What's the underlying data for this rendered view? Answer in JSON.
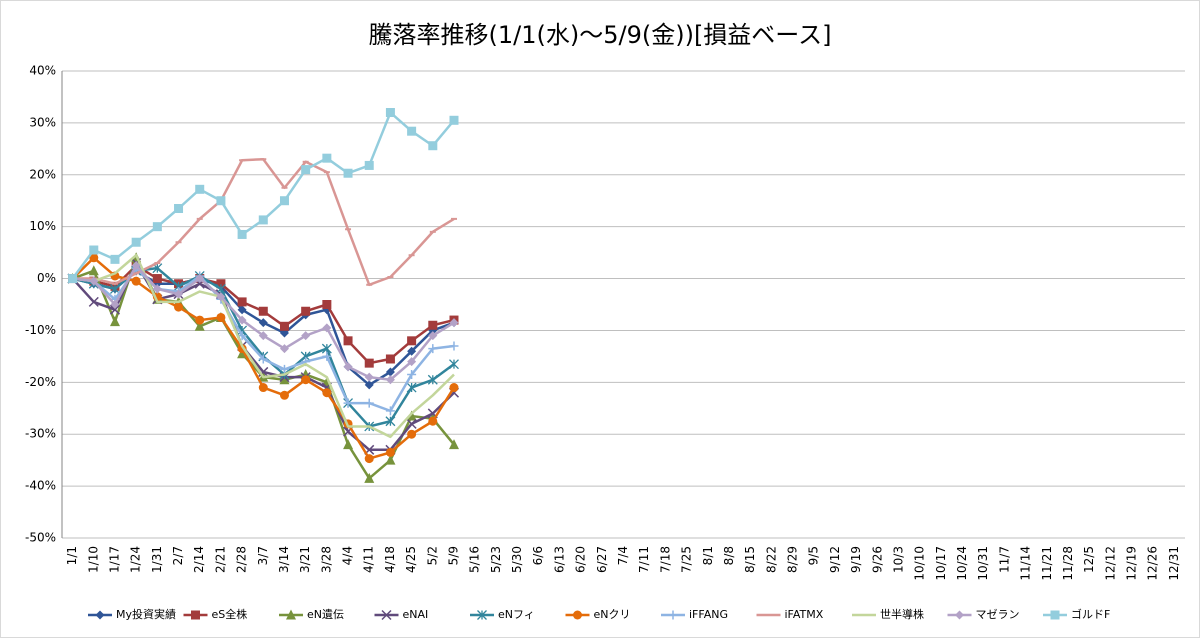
{
  "chart_data": {
    "type": "line",
    "title": "騰落率推移(1/1(水)～5/9(金))[損益ベース]",
    "categories": [
      "1/1",
      "1/10",
      "1/17",
      "1/24",
      "1/31",
      "2/7",
      "2/14",
      "2/21",
      "2/28",
      "3/7",
      "3/14",
      "3/21",
      "3/28",
      "4/4",
      "4/11",
      "4/18",
      "4/25",
      "5/2",
      "5/9",
      "5/16",
      "5/23",
      "5/30",
      "6/6",
      "6/13",
      "6/20",
      "6/27",
      "7/4",
      "7/11",
      "7/18",
      "7/25",
      "8/1",
      "8/8",
      "8/15",
      "8/22",
      "8/29",
      "9/5",
      "9/12",
      "9/19",
      "9/26",
      "10/3",
      "10/10",
      "10/17",
      "10/24",
      "10/31",
      "11/7",
      "11/14",
      "11/21",
      "11/28",
      "12/5",
      "12/12",
      "12/19",
      "12/26",
      "12/31"
    ],
    "ylim": [
      -50,
      40
    ],
    "yticks": [
      {
        "value": -50,
        "label": "-50%"
      },
      {
        "value": -40,
        "label": "-40%"
      },
      {
        "value": -30,
        "label": "-30%"
      },
      {
        "value": -20,
        "label": "-20%"
      },
      {
        "value": -10,
        "label": "-10%"
      },
      {
        "value": 0,
        "label": "0%"
      },
      {
        "value": 10,
        "label": "10%"
      },
      {
        "value": 20,
        "label": "20%"
      },
      {
        "value": 30,
        "label": "30%"
      },
      {
        "value": 40,
        "label": "40%"
      }
    ],
    "grid": true,
    "legend": "bottom",
    "series": [
      {
        "name": "My投資実績",
        "color": "#2f5597",
        "marker": "diamond",
        "values": [
          0,
          -1,
          -2,
          1.5,
          -1,
          -1,
          0,
          -1.5,
          -6,
          -8.5,
          -10.5,
          -7,
          -6,
          -17,
          -20.5,
          -18,
          -14,
          -10,
          -8.5,
          null,
          null,
          null,
          null,
          null,
          null,
          null,
          null,
          null,
          null,
          null,
          null,
          null,
          null,
          null,
          null,
          null,
          null,
          null,
          null,
          null,
          null,
          null,
          null,
          null,
          null,
          null,
          null,
          null,
          null,
          null,
          null,
          null,
          null
        ]
      },
      {
        "name": "eS全株",
        "color": "#a33b3b",
        "marker": "square",
        "values": [
          0,
          -0.5,
          -1.5,
          2.5,
          0,
          -1,
          0,
          -1,
          -4.5,
          -6.3,
          -9.2,
          -6.3,
          -5,
          -12,
          -16.3,
          -15.5,
          -12,
          -9,
          -8,
          null,
          null,
          null,
          null,
          null,
          null,
          null,
          null,
          null,
          null,
          null,
          null,
          null,
          null,
          null,
          null,
          null,
          null,
          null,
          null,
          null,
          null,
          null,
          null,
          null,
          null,
          null,
          null,
          null,
          null,
          null,
          null,
          null,
          null
        ]
      },
      {
        "name": "eN遺伝",
        "color": "#77933c",
        "marker": "triangle",
        "values": [
          0,
          1.5,
          -8.3,
          4,
          -4,
          -4.5,
          -9.2,
          -7.5,
          -14.5,
          -19,
          -19.5,
          -18.5,
          -20,
          -32,
          -38.5,
          -35,
          -26.5,
          -27,
          -32,
          null,
          null,
          null,
          null,
          null,
          null,
          null,
          null,
          null,
          null,
          null,
          null,
          null,
          null,
          null,
          null,
          null,
          null,
          null,
          null,
          null,
          null,
          null,
          null,
          null,
          null,
          null,
          null,
          null,
          null,
          null,
          null,
          null,
          null
        ]
      },
      {
        "name": "eNAI",
        "color": "#604a7b",
        "marker": "x",
        "values": [
          0,
          -4.5,
          -6,
          3,
          -4,
          -3,
          -1,
          -3,
          -13,
          -18,
          -19,
          -19,
          -21,
          -29.5,
          -33,
          -33,
          -28,
          -26,
          -22,
          null,
          null,
          null,
          null,
          null,
          null,
          null,
          null,
          null,
          null,
          null,
          null,
          null,
          null,
          null,
          null,
          null,
          null,
          null,
          null,
          null,
          null,
          null,
          null,
          null,
          null,
          null,
          null,
          null,
          null,
          null,
          null,
          null,
          null
        ]
      },
      {
        "name": "eNフィ",
        "color": "#31859c",
        "marker": "star",
        "values": [
          0,
          -1,
          -2,
          1.5,
          2,
          -1.5,
          0.5,
          -2,
          -10,
          -15,
          -18.5,
          -15,
          -13.5,
          -24,
          -28.5,
          -27.5,
          -21,
          -19.5,
          -16.5,
          null,
          null,
          null,
          null,
          null,
          null,
          null,
          null,
          null,
          null,
          null,
          null,
          null,
          null,
          null,
          null,
          null,
          null,
          null,
          null,
          null,
          null,
          null,
          null,
          null,
          null,
          null,
          null,
          null,
          null,
          null,
          null,
          null,
          null
        ]
      },
      {
        "name": "eNクリ",
        "color": "#e46c0a",
        "marker": "circle",
        "values": [
          0,
          4,
          0.5,
          -0.5,
          -3.5,
          -5.5,
          -8,
          -7.5,
          -13.5,
          -21,
          -22.5,
          -19.5,
          -22,
          -28,
          -34.7,
          -33.5,
          -30,
          -27.5,
          -21,
          null,
          null,
          null,
          null,
          null,
          null,
          null,
          null,
          null,
          null,
          null,
          null,
          null,
          null,
          null,
          null,
          null,
          null,
          null,
          null,
          null,
          null,
          null,
          null,
          null,
          null,
          null,
          null,
          null,
          null,
          null,
          null,
          null,
          null
        ]
      },
      {
        "name": "iFFANG",
        "color": "#8eb4e3",
        "marker": "plus",
        "values": [
          0,
          -0.5,
          -4,
          2,
          -2,
          -2.5,
          0.5,
          -4,
          -11,
          -15.5,
          -17.5,
          -16,
          -15,
          -24,
          -24,
          -25.5,
          -18.5,
          -13.5,
          -13,
          null,
          null,
          null,
          null,
          null,
          null,
          null,
          null,
          null,
          null,
          null,
          null,
          null,
          null,
          null,
          null,
          null,
          null,
          null,
          null,
          null,
          null,
          null,
          null,
          null,
          null,
          null,
          null,
          null,
          null,
          null,
          null,
          null,
          null
        ]
      },
      {
        "name": "iFATMX",
        "color": "#d99694",
        "marker": "dash",
        "values": [
          0,
          0,
          -1,
          1,
          3,
          7,
          11.5,
          15,
          22.8,
          23,
          17.5,
          22.5,
          20.5,
          9.5,
          -1.2,
          0.3,
          4.5,
          9,
          11.5,
          null,
          null,
          null,
          null,
          null,
          null,
          null,
          null,
          null,
          null,
          null,
          null,
          null,
          null,
          null,
          null,
          null,
          null,
          null,
          null,
          null,
          null,
          null,
          null,
          null,
          null,
          null,
          null,
          null,
          null,
          null,
          null,
          null,
          null
        ]
      },
      {
        "name": "世半導株",
        "color": "#c3d69b",
        "marker": "none",
        "values": [
          0,
          -0.5,
          1,
          4.5,
          -4.5,
          -4.5,
          -2.5,
          -3.5,
          -13,
          -19,
          -18.5,
          -16.5,
          -19,
          -28.5,
          -28.5,
          -30.5,
          -26,
          -22.5,
          -18.5,
          null,
          null,
          null,
          null,
          null,
          null,
          null,
          null,
          null,
          null,
          null,
          null,
          null,
          null,
          null,
          null,
          null,
          null,
          null,
          null,
          null,
          null,
          null,
          null,
          null,
          null,
          null,
          null,
          null,
          null,
          null,
          null,
          null,
          null
        ]
      },
      {
        "name": "マゼラン",
        "color": "#b3a2c7",
        "marker": "diamond",
        "values": [
          0,
          -0.5,
          -5,
          2.5,
          -2,
          -3,
          0,
          -3.5,
          -8,
          -11,
          -13.5,
          -11,
          -9.5,
          -17,
          -19,
          -19.5,
          -16,
          -11,
          -8.5,
          null,
          null,
          null,
          null,
          null,
          null,
          null,
          null,
          null,
          null,
          null,
          null,
          null,
          null,
          null,
          null,
          null,
          null,
          null,
          null,
          null,
          null,
          null,
          null,
          null,
          null,
          null,
          null,
          null,
          null,
          null,
          null,
          null,
          null
        ]
      },
      {
        "name": "ゴルドF",
        "color": "#93cddd",
        "marker": "square",
        "values": [
          0,
          5.5,
          3.7,
          7,
          10,
          13.5,
          17.2,
          15,
          8.5,
          11.3,
          15,
          21,
          23.2,
          20.3,
          21.8,
          32,
          28.4,
          25.6,
          30.5,
          null,
          null,
          null,
          null,
          null,
          null,
          null,
          null,
          null,
          null,
          null,
          null,
          null,
          null,
          null,
          null,
          null,
          null,
          null,
          null,
          null,
          null,
          null,
          null,
          null,
          null,
          null,
          null,
          null,
          null,
          null,
          null,
          null,
          null
        ]
      }
    ]
  }
}
